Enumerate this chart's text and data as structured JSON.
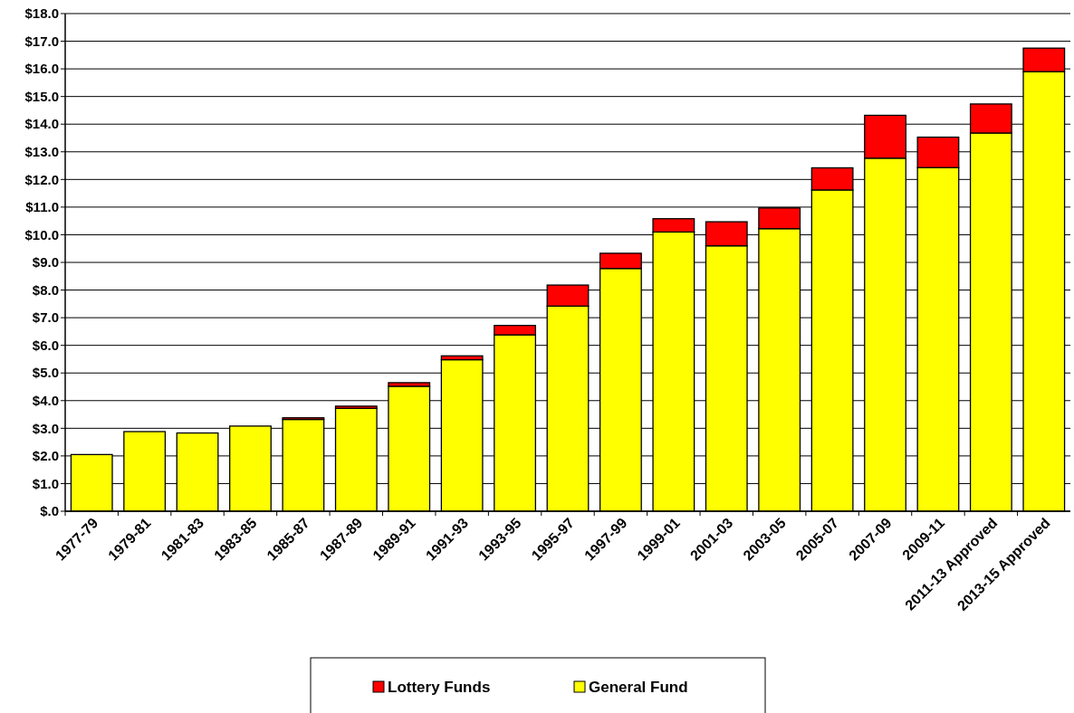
{
  "chart_data": {
    "type": "bar",
    "stacked": true,
    "categories": [
      "1977-79",
      "1979-81",
      "1981-83",
      "1983-85",
      "1985-87",
      "1987-89",
      "1989-91",
      "1991-93",
      "1993-95",
      "1995-97",
      "1997-99",
      "1999-01",
      "2001-03",
      "2003-05",
      "2005-07",
      "2007-09",
      "2009-11",
      "2011-13 Approved",
      "2013-15 Approved"
    ],
    "series": [
      {
        "name": "General Fund",
        "color": "#ffff00",
        "values": [
          2.05,
          2.88,
          2.83,
          3.08,
          3.32,
          3.72,
          4.52,
          5.48,
          6.38,
          7.42,
          8.78,
          10.1,
          9.6,
          10.22,
          11.62,
          12.77,
          12.43,
          13.68,
          15.9
        ]
      },
      {
        "name": "Lottery Funds",
        "color": "#ff0000",
        "values": [
          0,
          0,
          0,
          0,
          0.06,
          0.08,
          0.13,
          0.14,
          0.34,
          0.76,
          0.55,
          0.48,
          0.87,
          0.75,
          0.8,
          1.55,
          1.1,
          1.05,
          0.85
        ]
      }
    ],
    "ylim": [
      0,
      18
    ],
    "yticks": [
      {
        "value": 0,
        "label": "$.0"
      },
      {
        "value": 1,
        "label": "$1.0"
      },
      {
        "value": 2,
        "label": "$2.0"
      },
      {
        "value": 3,
        "label": "$3.0"
      },
      {
        "value": 4,
        "label": "$4.0"
      },
      {
        "value": 5,
        "label": "$5.0"
      },
      {
        "value": 6,
        "label": "$6.0"
      },
      {
        "value": 7,
        "label": "$7.0"
      },
      {
        "value": 8,
        "label": "$8.0"
      },
      {
        "value": 9,
        "label": "$9.0"
      },
      {
        "value": 10,
        "label": "$10.0"
      },
      {
        "value": 11,
        "label": "$11.0"
      },
      {
        "value": 12,
        "label": "$12.0"
      },
      {
        "value": 13,
        "label": "$13.0"
      },
      {
        "value": 14,
        "label": "$14.0"
      },
      {
        "value": 15,
        "label": "$15.0"
      },
      {
        "value": 16,
        "label": "$16.0"
      },
      {
        "value": 17,
        "label": "$17.0"
      },
      {
        "value": 18,
        "label": "$18.0"
      }
    ],
    "grid": "y",
    "legend": "bottom"
  }
}
